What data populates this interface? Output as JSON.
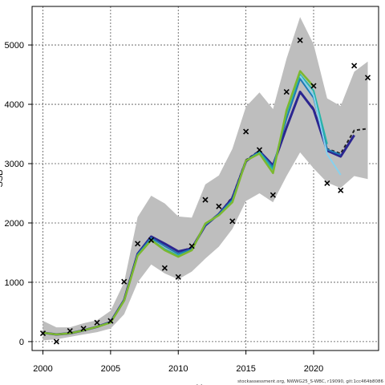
{
  "chart_data": {
    "type": "line",
    "xlabel": "Year",
    "ylabel": "SSB",
    "xlim": [
      1999.2,
      2024.8
    ],
    "ylim": [
      -150,
      5650
    ],
    "x_ticks": [
      2000,
      2005,
      2010,
      2015,
      2020
    ],
    "y_ticks": [
      0,
      1000,
      2000,
      3000,
      4000,
      5000
    ],
    "grid": true,
    "ci_band": {
      "color": "#bebebe",
      "x": [
        2000,
        2001,
        2002,
        2003,
        2004,
        2005,
        2006,
        2007,
        2008,
        2009,
        2010,
        2011,
        2012,
        2013,
        2014,
        2015,
        2016,
        2017,
        2018,
        2019,
        2020,
        2021,
        2022,
        2023,
        2024
      ],
      "upper": [
        350,
        240,
        240,
        310,
        360,
        520,
        1000,
        2100,
        2460,
        2330,
        2110,
        2090,
        2650,
        2800,
        3250,
        3960,
        4200,
        3920,
        4770,
        5470,
        5010,
        4100,
        3970,
        4550,
        4720
      ],
      "lower": [
        20,
        40,
        80,
        120,
        160,
        220,
        460,
        1000,
        1300,
        1150,
        1050,
        1180,
        1400,
        1600,
        1900,
        2370,
        2500,
        2350,
        2790,
        3190,
        2920,
        2680,
        2590,
        2790,
        2740
      ]
    },
    "observations": {
      "marker": "x",
      "x": [
        2000,
        2001,
        2002,
        2003,
        2004,
        2005,
        2006,
        2007,
        2008,
        2009,
        2010,
        2011,
        2012,
        2013,
        2014,
        2015,
        2016,
        2017,
        2018,
        2019,
        2020,
        2021,
        2022,
        2023,
        2024
      ],
      "y": [
        140,
        0,
        180,
        220,
        320,
        350,
        1010,
        1650,
        1710,
        1240,
        1090,
        1610,
        2390,
        2280,
        2030,
        3540,
        3230,
        2470,
        4210,
        5080,
        4310,
        2670,
        2550,
        4650,
        4450
      ]
    },
    "series": [
      {
        "color": "#222222",
        "dashed": true,
        "width": 2,
        "x": [
          2000,
          2001,
          2002,
          2003,
          2004,
          2005,
          2006,
          2007,
          2008,
          2009,
          2010,
          2011,
          2012,
          2013,
          2014,
          2015,
          2016,
          2017,
          2018,
          2019,
          2020,
          2021,
          2022,
          2023,
          2024
        ],
        "values": [
          150,
          120,
          140,
          190,
          250,
          330,
          700,
          1480,
          1770,
          1650,
          1520,
          1580,
          1960,
          2150,
          2440,
          3060,
          3220,
          2950,
          3620,
          4200,
          3930,
          3250,
          3170,
          3560,
          3590
        ]
      },
      {
        "color": "#2b2590",
        "width": 3,
        "x": [
          2000,
          2001,
          2002,
          2003,
          2004,
          2005,
          2006,
          2007,
          2008,
          2009,
          2010,
          2011,
          2012,
          2013,
          2014,
          2015,
          2016,
          2017,
          2018,
          2019,
          2020,
          2021,
          2022,
          2023
        ],
        "values": [
          150,
          120,
          140,
          190,
          250,
          330,
          700,
          1480,
          1770,
          1650,
          1520,
          1570,
          1960,
          2150,
          2420,
          3040,
          3210,
          2970,
          3610,
          4210,
          3910,
          3220,
          3120,
          3480
        ]
      },
      {
        "color": "#1f77b4",
        "width": 2,
        "x": [
          2000,
          2001,
          2002,
          2003,
          2004,
          2005,
          2006,
          2007,
          2008,
          2009,
          2010,
          2011,
          2012,
          2013,
          2014,
          2015,
          2016,
          2017,
          2018,
          2019,
          2020,
          2021,
          2022
        ],
        "values": [
          150,
          120,
          140,
          190,
          250,
          330,
          700,
          1470,
          1750,
          1610,
          1480,
          1560,
          1970,
          2150,
          2390,
          3050,
          3200,
          2940,
          3760,
          4430,
          4110,
          3240,
          3150
        ]
      },
      {
        "color": "#26b5a8",
        "width": 2,
        "x": [
          2000,
          2001,
          2002,
          2003,
          2004,
          2005,
          2006,
          2007,
          2008,
          2009,
          2010,
          2011,
          2012,
          2013,
          2014,
          2015,
          2016,
          2017,
          2018,
          2019,
          2020,
          2021
        ],
        "values": [
          150,
          120,
          140,
          190,
          250,
          320,
          690,
          1460,
          1720,
          1560,
          1450,
          1540,
          1980,
          2130,
          2370,
          3050,
          3190,
          2900,
          3850,
          4500,
          4230,
          3330
        ]
      },
      {
        "color": "#86d1ee",
        "width": 2,
        "x": [
          2019,
          2020,
          2021,
          2022
        ],
        "values": [
          4480,
          4150,
          3160,
          2810
        ]
      },
      {
        "color": "#7cb82f",
        "width": 2.5,
        "x": [
          2000,
          2001,
          2002,
          2003,
          2004,
          2005,
          2006,
          2007,
          2008,
          2009,
          2010,
          2011,
          2012,
          2013,
          2014,
          2015,
          2016,
          2017,
          2018,
          2019,
          2020
        ],
        "values": [
          150,
          120,
          140,
          190,
          250,
          320,
          690,
          1450,
          1710,
          1540,
          1430,
          1540,
          1990,
          2130,
          2350,
          3050,
          3170,
          2840,
          3900,
          4560,
          4300
        ]
      }
    ]
  },
  "footer_text": "stockassessment.org, NWWG25_S-WBC, r19090, git:1cc464b8086"
}
